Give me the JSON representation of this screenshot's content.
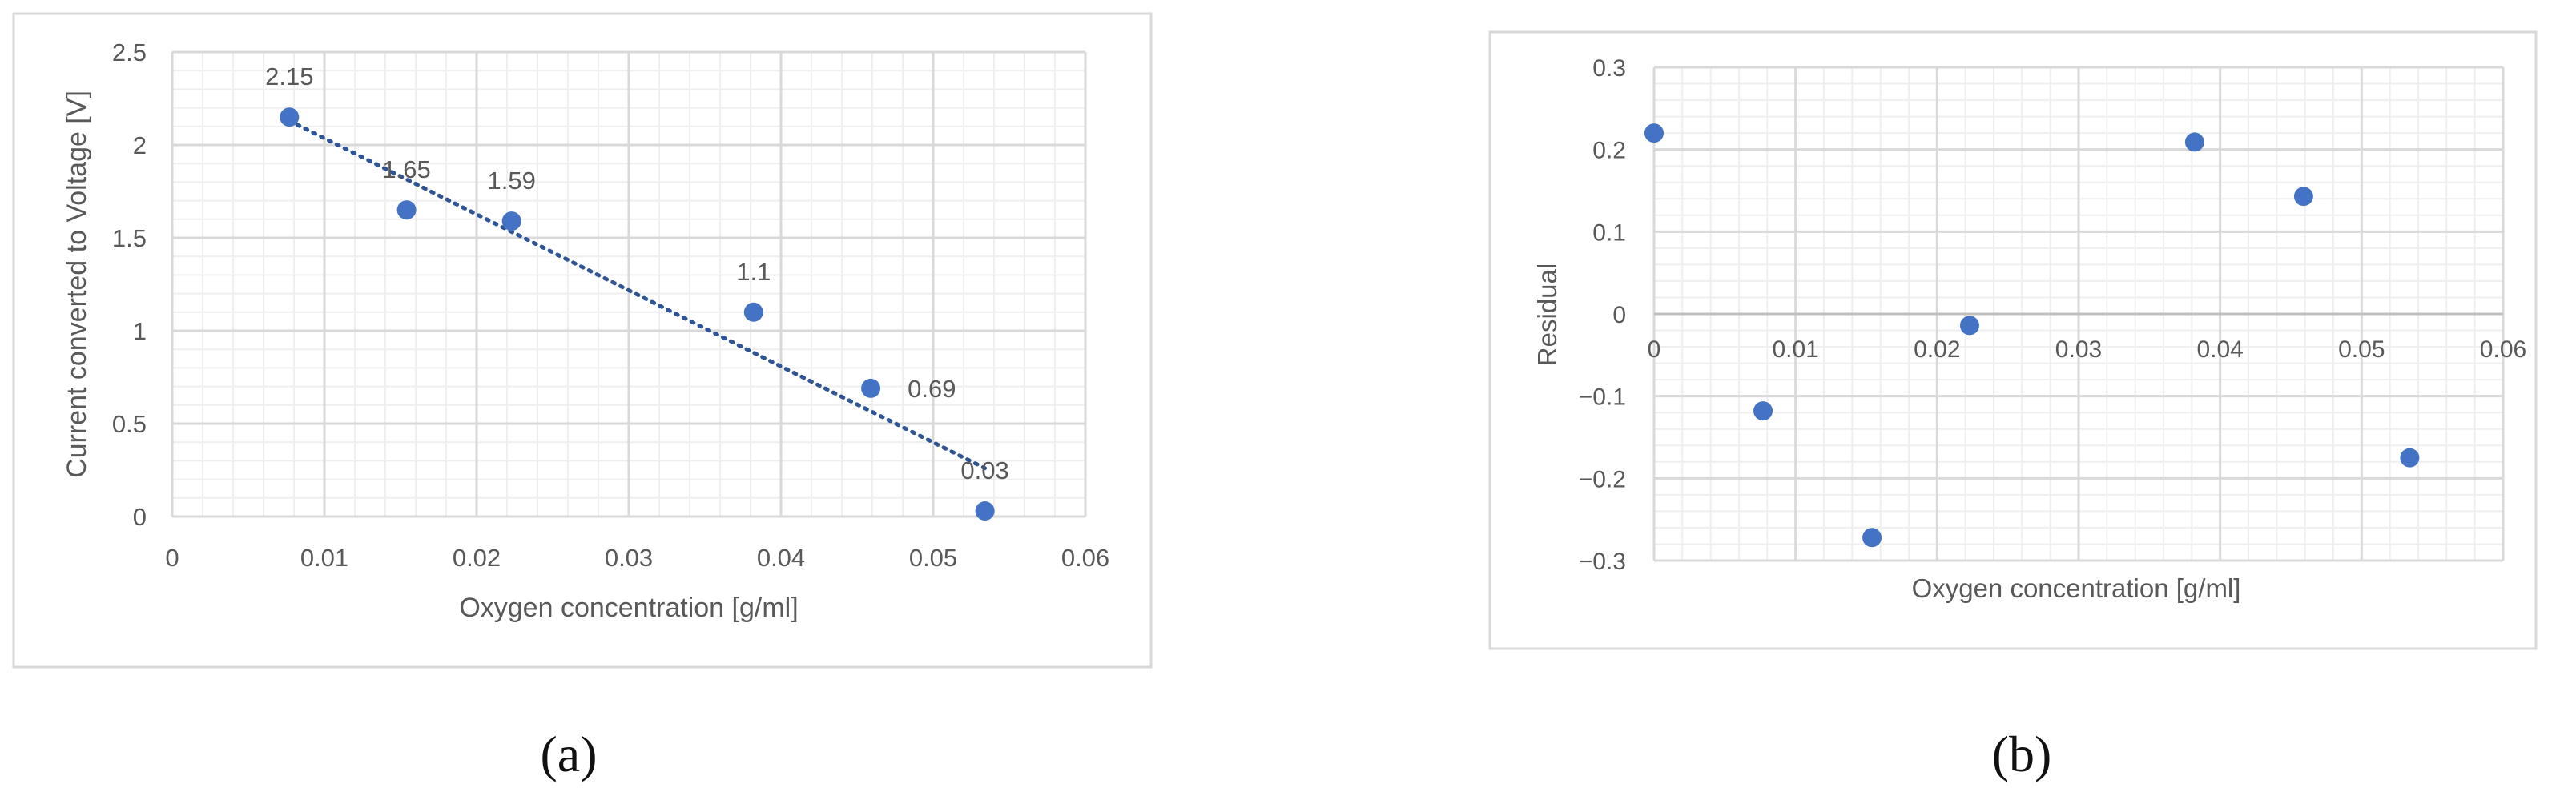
{
  "captions": {
    "a": "(a)",
    "b": "(b)"
  },
  "colors": {
    "marker": "#4472C4",
    "trend": "#2F5597",
    "major_grid": "#D9D9D9",
    "minor_grid": "#EFEFEF",
    "text": "#595959",
    "frame": "#D9D9D9"
  },
  "chart_data": [
    {
      "type": "scatter",
      "xlabel": "Oxygen concentration [g/ml]",
      "ylabel": "Current converted to Voltage [V]",
      "xlim": [
        0,
        0.06
      ],
      "ylim": [
        0,
        2.5
      ],
      "xticks": [
        "0",
        "0.01",
        "0.02",
        "0.03",
        "0.04",
        "0.05",
        "0.06"
      ],
      "yticks": [
        "0",
        "0.5",
        "1",
        "1.5",
        "2",
        "2.5"
      ],
      "grid": true,
      "points": [
        {
          "x": 0.0077,
          "y": 2.15,
          "label": "2.15"
        },
        {
          "x": 0.0154,
          "y": 1.65,
          "label": "1.65"
        },
        {
          "x": 0.0223,
          "y": 1.59,
          "label": "1.59"
        },
        {
          "x": 0.0382,
          "y": 1.1,
          "label": "1.1"
        },
        {
          "x": 0.0459,
          "y": 0.69,
          "label": "0.69"
        },
        {
          "x": 0.0534,
          "y": 0.03,
          "label": "0.03"
        }
      ],
      "trendline": {
        "style": "dotted",
        "linear": true,
        "from": [
          0.0077,
          2.13
        ],
        "to": [
          0.0534,
          0.26
        ]
      }
    },
    {
      "type": "scatter",
      "xlabel": "Oxygen concentration [g/ml]",
      "ylabel": "Residual",
      "xlim": [
        0,
        0.06
      ],
      "ylim": [
        -0.3,
        0.3
      ],
      "xticks": [
        "0",
        "0.01",
        "0.02",
        "0.03",
        "0.04",
        "0.05",
        "0.06"
      ],
      "yticks": [
        "−0.3",
        "−0.2",
        "−0.1",
        "0",
        "0.1",
        "0.2",
        "0.3"
      ],
      "grid": true,
      "points": [
        {
          "x": 0.0,
          "y": 0.22
        },
        {
          "x": 0.0077,
          "y": -0.118
        },
        {
          "x": 0.0154,
          "y": -0.272
        },
        {
          "x": 0.0223,
          "y": -0.014
        },
        {
          "x": 0.0382,
          "y": 0.209
        },
        {
          "x": 0.0459,
          "y": 0.143
        },
        {
          "x": 0.0534,
          "y": -0.175
        }
      ]
    }
  ]
}
